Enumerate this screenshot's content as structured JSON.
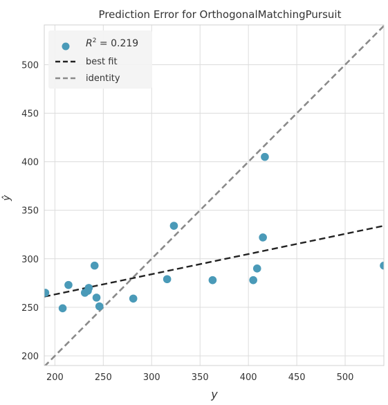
{
  "chart_data": {
    "type": "scatter",
    "title": "Prediction Error for OrthogonalMatchingPursuit",
    "xlabel": "y",
    "ylabel": "ŷ",
    "xlim": [
      189,
      540
    ],
    "ylim": [
      190,
      541
    ],
    "xticks": [
      200,
      250,
      300,
      350,
      400,
      450,
      500
    ],
    "yticks": [
      200,
      250,
      300,
      350,
      400,
      450,
      500
    ],
    "grid": true,
    "legend_position": "top-left",
    "legend": [
      {
        "label_prefix": "R",
        "label_sup": "2",
        "label_value": " = 0.219",
        "kind": "marker",
        "color": "#4a9ab8"
      },
      {
        "label": "best fit",
        "kind": "line",
        "color": "#222222",
        "dash": "dashed"
      },
      {
        "label": "identity",
        "kind": "line",
        "color": "#8a8a8a",
        "dash": "dashed"
      }
    ],
    "series": [
      {
        "kind": "scatter",
        "color": "#4a9ab8",
        "points": [
          [
            190,
            265
          ],
          [
            208,
            249
          ],
          [
            214,
            273
          ],
          [
            231,
            265
          ],
          [
            235,
            270
          ],
          [
            234,
            267
          ],
          [
            241,
            293
          ],
          [
            243,
            260
          ],
          [
            246,
            251
          ],
          [
            281,
            259
          ],
          [
            316,
            279
          ],
          [
            323,
            334
          ],
          [
            363,
            278
          ],
          [
            405,
            278
          ],
          [
            409,
            290
          ],
          [
            415,
            322
          ],
          [
            417,
            405
          ],
          [
            540,
            293
          ]
        ]
      },
      {
        "kind": "line",
        "name": "best fit",
        "color": "#222222",
        "dash": "dashed",
        "points": [
          [
            189,
            261
          ],
          [
            540,
            334
          ]
        ]
      },
      {
        "kind": "line",
        "name": "identity",
        "color": "#8a8a8a",
        "dash": "dashed",
        "points": [
          [
            189,
            189
          ],
          [
            541,
            541
          ]
        ]
      }
    ]
  }
}
